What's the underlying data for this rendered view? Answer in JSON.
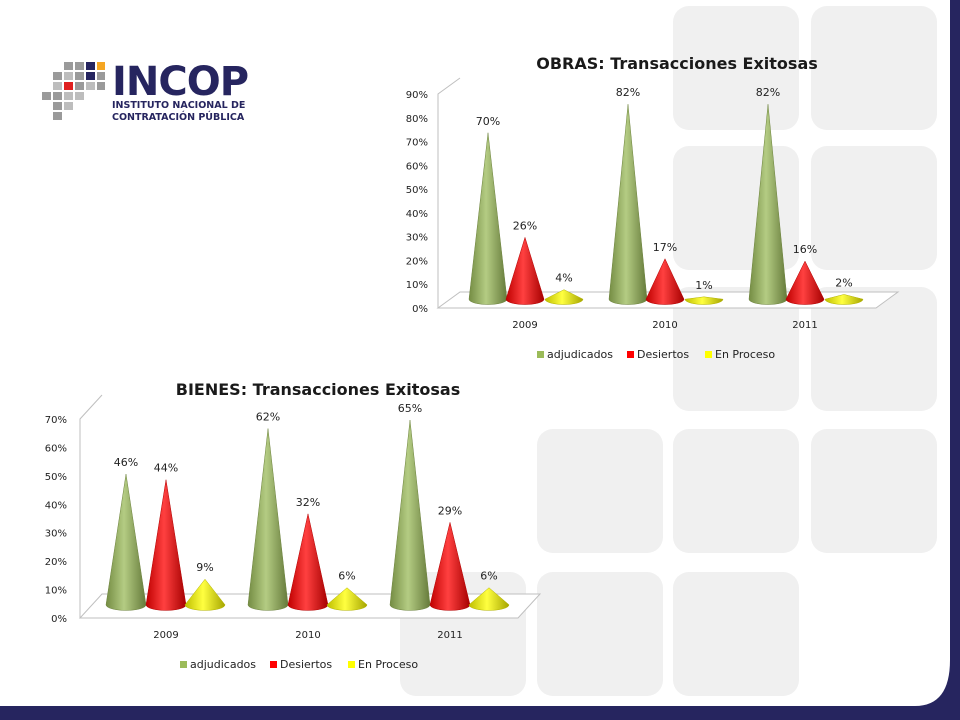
{
  "logo": {
    "name": "INCOP",
    "line1": "INSTITUTO NACIONAL DE",
    "line2": "CONTRATACIÓN PÚBLICA"
  },
  "colors": {
    "adjudicados": "#9bbb59",
    "desiertos": "#ff0000",
    "en_proceso": "#ffff00",
    "footer": "#26255f"
  },
  "chart_data": [
    {
      "type": "bar",
      "title": "OBRAS: Transacciones Exitosas",
      "categories": [
        "2009",
        "2010",
        "2011"
      ],
      "series": [
        {
          "name": "adjudicados",
          "values": [
            70,
            82,
            82
          ],
          "labels": [
            "70%",
            "82%",
            "82%"
          ]
        },
        {
          "name": "Desiertos",
          "values": [
            26,
            17,
            16
          ],
          "labels": [
            "26%",
            "17%",
            "16%"
          ]
        },
        {
          "name": "En Proceso",
          "values": [
            4,
            1,
            2
          ],
          "labels": [
            "4%",
            "1%",
            "2%"
          ]
        }
      ],
      "ylim": [
        0,
        90
      ],
      "yticks": [
        "0%",
        "10%",
        "20%",
        "30%",
        "40%",
        "50%",
        "60%",
        "70%",
        "80%",
        "90%"
      ],
      "legend": "bottom",
      "grid": false
    },
    {
      "type": "bar",
      "title": "BIENES: Transacciones Exitosas",
      "categories": [
        "2009",
        "2010",
        "2011"
      ],
      "series": [
        {
          "name": "adjudicados",
          "values": [
            46,
            62,
            65
          ],
          "labels": [
            "46%",
            "62%",
            "65%"
          ]
        },
        {
          "name": "Desiertos",
          "values": [
            44,
            32,
            29
          ],
          "labels": [
            "44%",
            "32%",
            "29%"
          ]
        },
        {
          "name": "En Proceso",
          "values": [
            9,
            6,
            6
          ],
          "labels": [
            "9%",
            "6%",
            "6%"
          ]
        }
      ],
      "ylim": [
        0,
        70
      ],
      "yticks": [
        "0%",
        "10%",
        "20%",
        "30%",
        "40%",
        "50%",
        "60%",
        "70%"
      ],
      "legend": "bottom",
      "grid": false
    }
  ]
}
